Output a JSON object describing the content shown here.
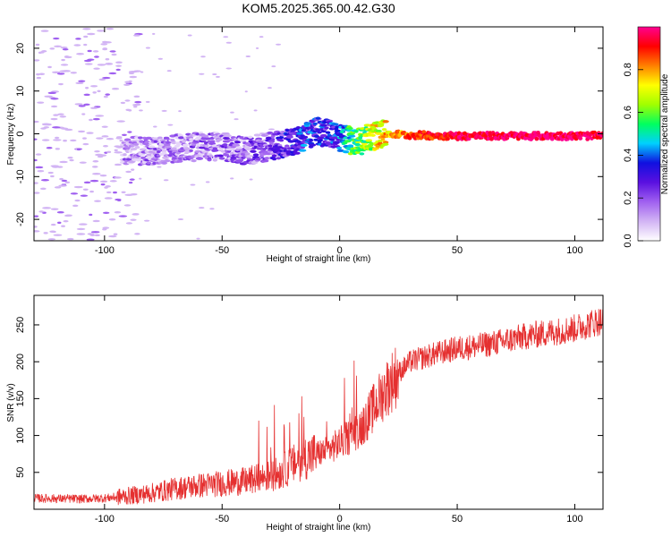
{
  "figure": {
    "title": "KOM5.2025.365.00.42.G30"
  },
  "chart_data": [
    {
      "type": "heatmap",
      "name": "spectrogram",
      "title": "KOM5.2025.365.00.42.G30",
      "xlabel": "Height of straight line (km)",
      "ylabel": "Frequency (Hz)",
      "xlim": [
        -130,
        112
      ],
      "ylim": [
        -25,
        25
      ],
      "xticks": [
        -100,
        -50,
        0,
        50,
        100
      ],
      "yticks": [
        -20,
        -10,
        0,
        10,
        20
      ],
      "colorbar": {
        "label": "Normalized spectral amplitude",
        "range": [
          0,
          1
        ],
        "ticks": [
          0.0,
          0.2,
          0.4,
          0.6,
          0.8
        ],
        "tick_labels": [
          "0.0",
          "0.2",
          "0.4",
          "0.6",
          "0.8"
        ],
        "colormap": [
          "#ffffff",
          "#d2b4f4",
          "#a060f0",
          "#5a10e0",
          "#1010e0",
          "#00d0ff",
          "#00ff60",
          "#a0ff00",
          "#ffff00",
          "#ff8000",
          "#ff0000",
          "#ff0090"
        ]
      },
      "signal_trace": {
        "description_free": true,
        "x": [
          -90,
          -80,
          -70,
          -60,
          -50,
          -40,
          -30,
          -20,
          -15,
          -10,
          -5,
          0,
          5,
          10,
          15,
          20,
          30,
          50,
          80,
          112
        ],
        "freq": [
          -4,
          -4,
          -3.5,
          -3,
          -3,
          -4,
          -3,
          -2,
          -1,
          0.5,
          0.2,
          -1,
          -1.5,
          -1.5,
          -0.5,
          0,
          -0.3,
          -0.5,
          -0.5,
          -0.5
        ],
        "amplitude": [
          0.1,
          0.12,
          0.12,
          0.14,
          0.15,
          0.15,
          0.2,
          0.3,
          0.35,
          0.3,
          0.3,
          0.35,
          0.55,
          0.6,
          0.7,
          0.75,
          0.85,
          0.95,
          0.98,
          0.97
        ]
      }
    },
    {
      "type": "line",
      "name": "snr",
      "xlabel": "Height of straight line (km)",
      "ylabel": "SNR (v/v)",
      "xlim": [
        -130,
        112
      ],
      "ylim": [
        0,
        290
      ],
      "xticks": [
        -100,
        -50,
        0,
        50,
        100
      ],
      "yticks": [
        50,
        100,
        150,
        200,
        250
      ],
      "color": "#e53030",
      "trend": {
        "x": [
          -130,
          -110,
          -100,
          -90,
          -80,
          -70,
          -60,
          -50,
          -40,
          -30,
          -25,
          -20,
          -15,
          -10,
          -5,
          0,
          5,
          10,
          15,
          20,
          25,
          30,
          35,
          40,
          50,
          60,
          70,
          80,
          90,
          100,
          105,
          110
        ],
        "y": [
          15,
          14,
          15,
          18,
          22,
          28,
          32,
          35,
          38,
          45,
          50,
          60,
          70,
          75,
          80,
          90,
          100,
          115,
          140,
          165,
          185,
          200,
          205,
          210,
          218,
          222,
          228,
          235,
          240,
          245,
          250,
          255
        ]
      }
    }
  ]
}
